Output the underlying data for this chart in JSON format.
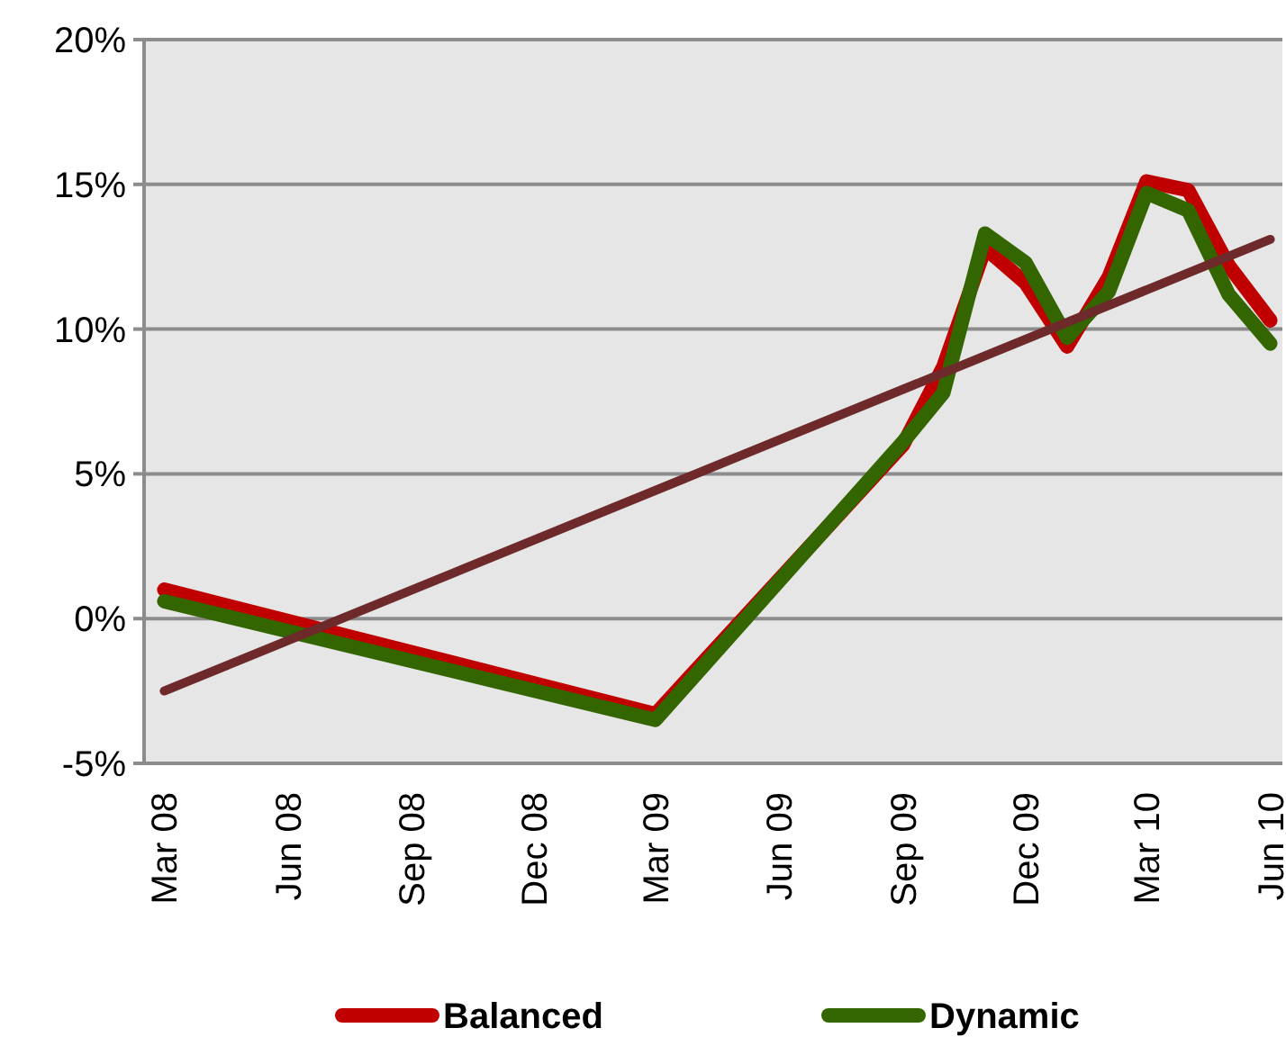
{
  "chart_data": {
    "type": "line",
    "x": [
      "2008-03",
      "2009-03",
      "2009-09",
      "2009-10",
      "2009-11",
      "2009-12",
      "2010-01",
      "2010-02",
      "2010-03",
      "2010-04",
      "2010-05",
      "2010-06"
    ],
    "series": [
      {
        "name": "Balanced",
        "color": "#c00000",
        "values": [
          1.0,
          -3.3,
          6.0,
          8.7,
          12.8,
          11.6,
          9.4,
          11.8,
          15.1,
          14.8,
          12.2,
          10.3
        ]
      },
      {
        "name": "Dynamic",
        "color": "#336600",
        "values": [
          0.6,
          -3.5,
          6.1,
          7.8,
          13.3,
          12.3,
          9.7,
          11.3,
          14.7,
          14.1,
          11.2,
          9.5
        ]
      },
      {
        "type": "line",
        "color": "#6e2a2a",
        "x": [
          "2008-03",
          "2010-06"
        ],
        "values": [
          -2.5,
          13.1
        ]
      }
    ],
    "xlim": [
      "2008-02-15",
      "2010-06-10"
    ],
    "xticks": [
      {
        "value": "2008-03",
        "label": "Mar 08"
      },
      {
        "value": "2008-06",
        "label": "Jun 08"
      },
      {
        "value": "2008-09",
        "label": "Sep 08"
      },
      {
        "value": "2008-12",
        "label": "Dec 08"
      },
      {
        "value": "2009-03",
        "label": "Mar 09"
      },
      {
        "value": "2009-06",
        "label": "Jun 09"
      },
      {
        "value": "2009-09",
        "label": "Sep 09"
      },
      {
        "value": "2009-12",
        "label": "Dec 09"
      },
      {
        "value": "2010-03",
        "label": "Mar 10"
      },
      {
        "value": "2010-06",
        "label": "Jun 10"
      }
    ],
    "ylim": [
      -5,
      20
    ],
    "yticks": [
      {
        "value": -5,
        "label": "-5%"
      },
      {
        "value": 0,
        "label": "0%"
      },
      {
        "value": 5,
        "label": "5%"
      },
      {
        "value": 10,
        "label": "10%"
      },
      {
        "value": 15,
        "label": "15%"
      },
      {
        "value": 20,
        "label": "20%"
      }
    ],
    "grid": "y",
    "legend": "bottom",
    "marker": "none",
    "line_style": "solid"
  }
}
